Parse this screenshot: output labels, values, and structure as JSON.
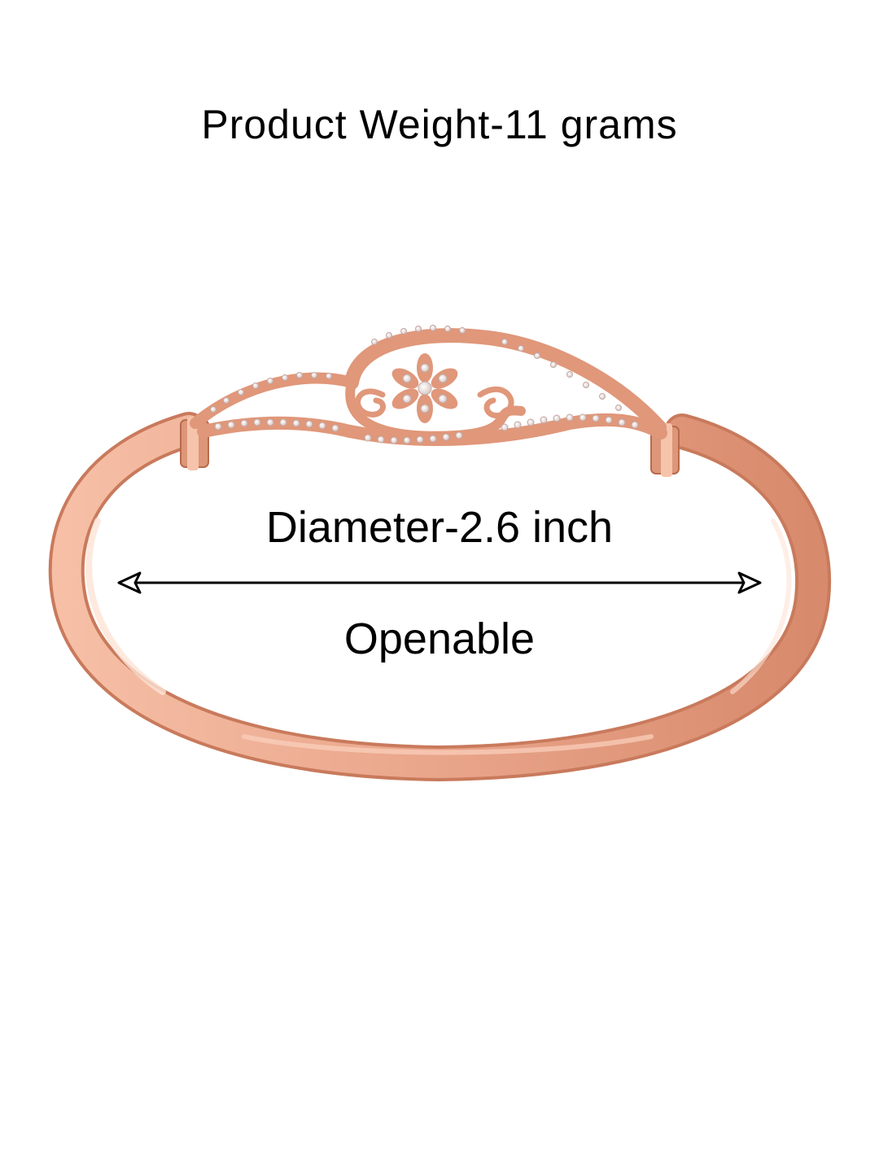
{
  "image": {
    "subject": "rose-gold-bangle-bracelet",
    "background_color": "#ffffff",
    "metal_color": "#e9a58a",
    "metal_highlight_color": "#fbd9c8",
    "metal_shadow_color": "#c97a5c",
    "stone_color": "#f4eeee"
  },
  "text": {
    "weight": "Product Weight-11 grams",
    "diameter": "Diameter-2.6 inch",
    "openable": "Openable"
  },
  "annotation": {
    "arrow_type": "double-headed",
    "arrow_color": "#000000"
  }
}
